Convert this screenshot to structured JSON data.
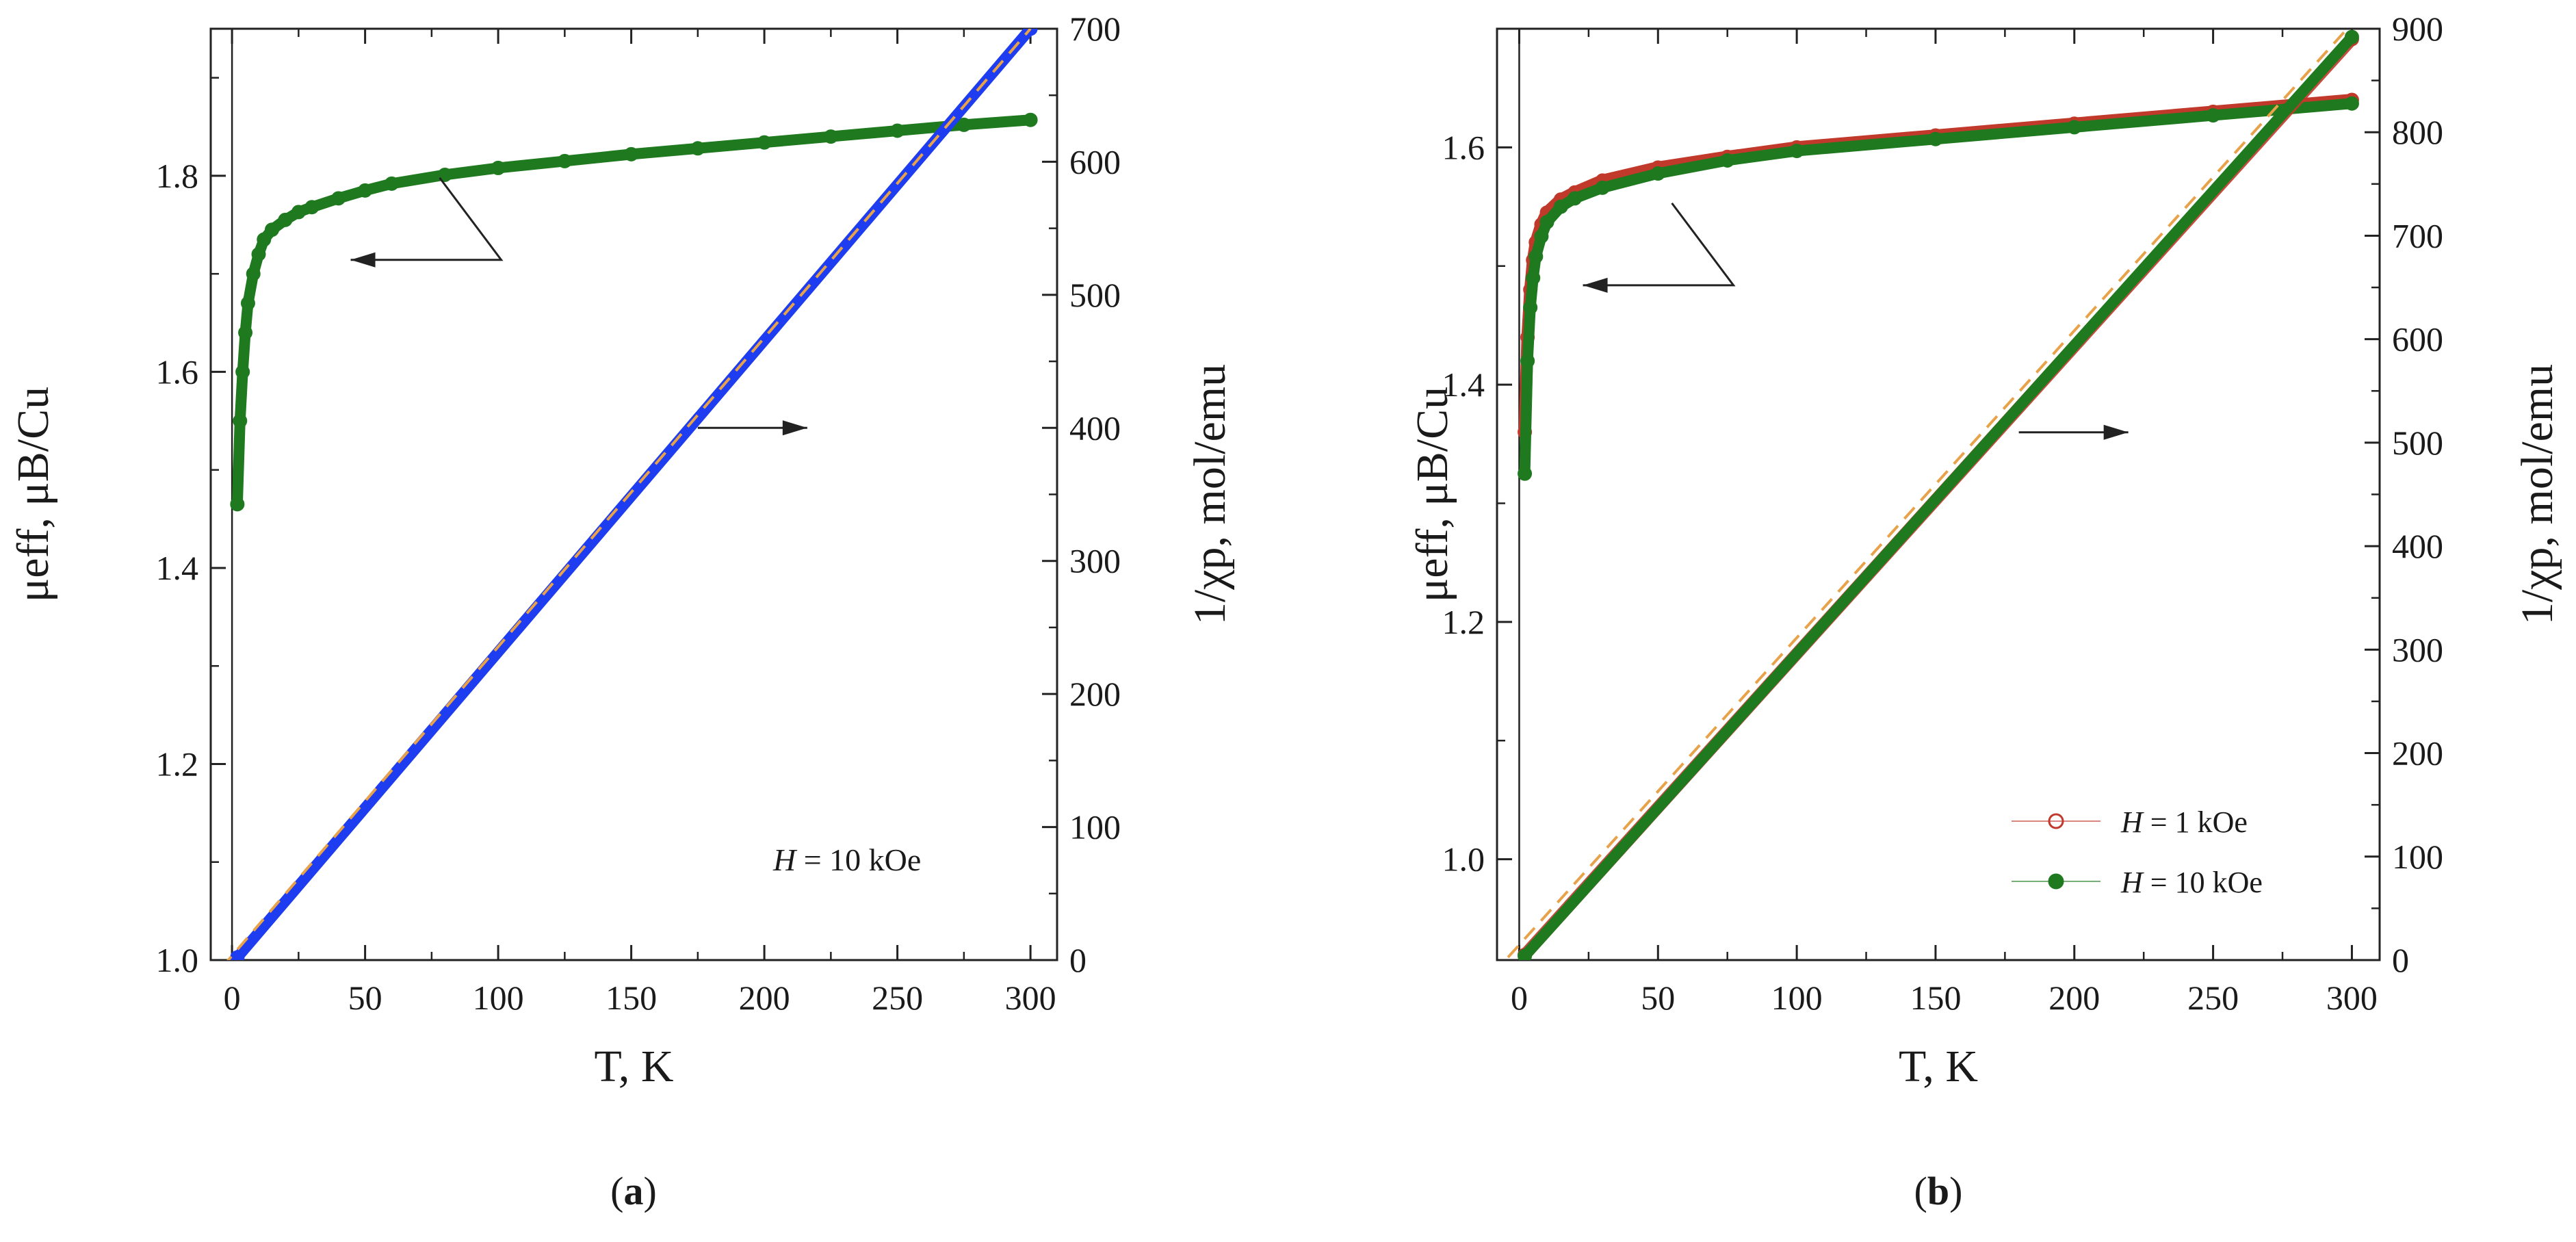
{
  "chart_data": [
    {
      "type": "line",
      "panel_label": "a",
      "xlabel": "T, K",
      "ylabel_left": "μeff, μB/Cu",
      "ylabel_right": "1/χp, mol/emu",
      "xlim": [
        -8,
        310
      ],
      "ylim_left": [
        1.0,
        1.95
      ],
      "ylim_right": [
        0,
        700
      ],
      "xticks": [
        0,
        50,
        100,
        150,
        200,
        250,
        300
      ],
      "yticks_left": [
        1.0,
        1.2,
        1.4,
        1.6,
        1.8
      ],
      "yticks_right": [
        0,
        100,
        200,
        300,
        400,
        500,
        600,
        700
      ],
      "annotation": "H = 10 kOe",
      "series": [
        {
          "name": "μeff (H = 10 kOe)",
          "axis": "left",
          "color": "#1f7a1f",
          "marker": "filled-circle",
          "x": [
            2,
            3,
            4,
            5,
            6,
            8,
            10,
            12,
            15,
            20,
            25,
            30,
            40,
            50,
            60,
            80,
            100,
            125,
            150,
            175,
            200,
            225,
            250,
            275,
            300
          ],
          "y": [
            1.465,
            1.55,
            1.6,
            1.64,
            1.67,
            1.7,
            1.72,
            1.735,
            1.745,
            1.755,
            1.763,
            1.768,
            1.777,
            1.785,
            1.792,
            1.801,
            1.808,
            1.815,
            1.822,
            1.828,
            1.834,
            1.84,
            1.846,
            1.852,
            1.857
          ]
        },
        {
          "name": "1/χp (H = 10 kOe)",
          "axis": "right",
          "color": "#1f3df0",
          "marker": "filled-circle",
          "x": [
            2,
            300
          ],
          "y": [
            2,
            700
          ]
        },
        {
          "name": "fit",
          "axis": "right",
          "color": "#e8a24a",
          "style": "dashed",
          "x": [
            -10,
            300
          ],
          "y": [
            -20,
            700
          ]
        }
      ],
      "arrows": [
        {
          "points_to": "left",
          "from_x": 78,
          "from_y": 1.798
        },
        {
          "points_to": "right",
          "from_x": 175,
          "from_y": 400
        }
      ]
    },
    {
      "type": "line",
      "panel_label": "b",
      "xlabel": "T, K",
      "ylabel_left": "μeff, μB/Cu",
      "ylabel_right": "1/χp, mol/emu",
      "xlim": [
        -8,
        310
      ],
      "ylim_left": [
        0.915,
        1.7
      ],
      "ylim_right": [
        0,
        900
      ],
      "xticks": [
        0,
        50,
        100,
        150,
        200,
        250,
        300
      ],
      "yticks_left": [
        1.0,
        1.2,
        1.4,
        1.6
      ],
      "yticks_right": [
        0,
        100,
        200,
        300,
        400,
        500,
        600,
        700,
        800,
        900
      ],
      "legend": [
        {
          "label_italic": "H",
          "label_rest": " =  1  kOe",
          "marker": "open-circle",
          "color": "#c0392b"
        },
        {
          "label_italic": "H",
          "label_rest": " = 10  kOe",
          "marker": "filled-circle",
          "color": "#1f7a1f"
        }
      ],
      "series": [
        {
          "name": "μeff (H = 1 kOe)",
          "axis": "left",
          "color": "#c0392b",
          "marker": "open-circle",
          "x": [
            2,
            3,
            4,
            5,
            6,
            8,
            10,
            15,
            20,
            30,
            50,
            75,
            100,
            150,
            200,
            250,
            300
          ],
          "y": [
            1.36,
            1.44,
            1.48,
            1.505,
            1.52,
            1.535,
            1.545,
            1.556,
            1.562,
            1.572,
            1.583,
            1.592,
            1.6,
            1.61,
            1.62,
            1.63,
            1.64
          ]
        },
        {
          "name": "μeff (H = 10 kOe)",
          "axis": "left",
          "color": "#1f7a1f",
          "marker": "filled-circle",
          "x": [
            2,
            3,
            4,
            5,
            6,
            8,
            10,
            15,
            20,
            30,
            50,
            75,
            100,
            150,
            200,
            250,
            300
          ],
          "y": [
            1.325,
            1.42,
            1.465,
            1.49,
            1.508,
            1.525,
            1.537,
            1.55,
            1.557,
            1.566,
            1.578,
            1.589,
            1.597,
            1.607,
            1.617,
            1.627,
            1.637
          ]
        },
        {
          "name": "1/χp (H = 1 kOe)",
          "axis": "right",
          "color": "#c0392b",
          "marker": "open-circle",
          "x": [
            2,
            300
          ],
          "y": [
            5,
            890
          ]
        },
        {
          "name": "1/χp (H = 10 kOe)",
          "axis": "right",
          "color": "#1f7a1f",
          "marker": "filled-circle",
          "x": [
            2,
            300
          ],
          "y": [
            4,
            892
          ]
        },
        {
          "name": "fit",
          "axis": "right",
          "color": "#e8a24a",
          "style": "dashed",
          "x": [
            -10,
            300
          ],
          "y": [
            -15,
            905
          ]
        }
      ],
      "arrows": [
        {
          "points_to": "left",
          "from_x": 55,
          "from_y": 1.553
        },
        {
          "points_to": "right",
          "from_x": 180,
          "from_y": 510
        }
      ]
    }
  ]
}
